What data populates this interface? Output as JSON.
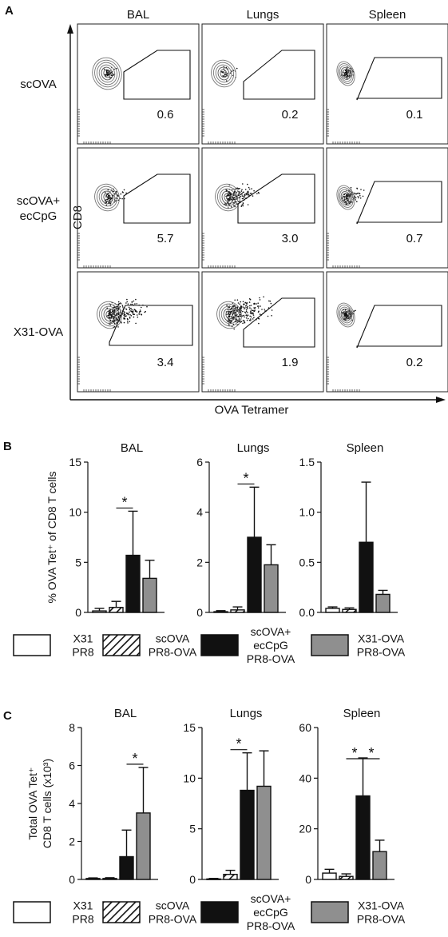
{
  "panel_letters": [
    "A",
    "B",
    "C"
  ],
  "panelA": {
    "columns": [
      "BAL",
      "Lungs",
      "Spleen"
    ],
    "rows": [
      "scOVA",
      "scOVA+\necCpG",
      "X31-OVA"
    ],
    "values": [
      [
        "0.6",
        "0.2",
        "0.1"
      ],
      [
        "5.7",
        "3.0",
        "0.7"
      ],
      [
        "3.4",
        "1.9",
        "0.2"
      ]
    ],
    "ylabel": "CD8",
    "xlabel": "OVA Tetramer"
  },
  "legend": [
    {
      "label": "X31\nPR8",
      "fill": "#ffffff",
      "hatch": false
    },
    {
      "label": "scOVA\nPR8-OVA",
      "fill": "#ffffff",
      "hatch": true
    },
    {
      "label": "scOVA+\necCpG\nPR8-OVA",
      "fill": "#111111",
      "hatch": false
    },
    {
      "label": "X31-OVA\nPR8-OVA",
      "fill": "#8f8f8f",
      "hatch": false
    }
  ],
  "chart_data": [
    {
      "type": "bar",
      "panel": "B",
      "title": "BAL",
      "ylabel": "% OVA Tet⁺ of CD8 T cells",
      "ylim": [
        0,
        15
      ],
      "yticks": [
        0,
        5,
        10,
        15
      ],
      "categories": [
        "X31/PR8",
        "scOVA/PR8-OVA",
        "scOVA+ecCpG/PR8-OVA",
        "X31-OVA/PR8-OVA"
      ],
      "values": [
        0.15,
        0.5,
        5.7,
        3.4
      ],
      "errors": [
        0.25,
        0.6,
        4.4,
        1.8
      ],
      "significance": [
        {
          "from": 1,
          "to": 2,
          "label": "*"
        }
      ]
    },
    {
      "type": "bar",
      "panel": "B",
      "title": "Lungs",
      "ylabel": "",
      "ylim": [
        0,
        6
      ],
      "yticks": [
        0,
        2,
        4,
        6
      ],
      "categories": [
        "X31/PR8",
        "scOVA/PR8-OVA",
        "scOVA+ecCpG/PR8-OVA",
        "X31-OVA/PR8-OVA"
      ],
      "values": [
        0.03,
        0.1,
        3.0,
        1.9
      ],
      "errors": [
        0.04,
        0.12,
        2.0,
        0.8
      ],
      "significance": [
        {
          "from": 1,
          "to": 2,
          "label": "*"
        }
      ]
    },
    {
      "type": "bar",
      "panel": "B",
      "title": "Spleen",
      "ylabel": "",
      "ylim": [
        0,
        1.5
      ],
      "yticks": [
        "0.0",
        "0.5",
        "1.0",
        "1.5"
      ],
      "categories": [
        "X31/PR8",
        "scOVA/PR8-OVA",
        "scOVA+ecCpG/PR8-OVA",
        "X31-OVA/PR8-OVA"
      ],
      "values": [
        0.04,
        0.03,
        0.7,
        0.18
      ],
      "errors": [
        0.015,
        0.015,
        0.6,
        0.04
      ],
      "significance": []
    },
    {
      "type": "bar",
      "panel": "C",
      "title": "BAL",
      "ylabel": "Total OVA Tet⁺ CD8 T cells (x10³)",
      "ylim": [
        0,
        8
      ],
      "yticks": [
        0,
        2,
        4,
        6,
        8
      ],
      "categories": [
        "X31/PR8",
        "scOVA/PR8-OVA",
        "scOVA+ecCpG/PR8-OVA",
        "X31-OVA/PR8-OVA"
      ],
      "values": [
        0.05,
        0.05,
        1.2,
        3.5
      ],
      "errors": [
        0.03,
        0.04,
        1.4,
        2.4
      ],
      "significance": [
        {
          "from": 2,
          "to": 3,
          "label": "*"
        }
      ]
    },
    {
      "type": "bar",
      "panel": "C",
      "title": "Lungs",
      "ylabel": "",
      "ylim": [
        0,
        15
      ],
      "yticks": [
        0,
        5,
        10,
        15
      ],
      "categories": [
        "X31/PR8",
        "scOVA/PR8-OVA",
        "scOVA+ecCpG/PR8-OVA",
        "X31-OVA/PR8-OVA"
      ],
      "values": [
        0.05,
        0.5,
        8.8,
        9.2
      ],
      "errors": [
        0.05,
        0.4,
        3.7,
        3.5
      ],
      "significance": [
        {
          "from": 1,
          "to": 2,
          "label": "*"
        }
      ]
    },
    {
      "type": "bar",
      "panel": "C",
      "title": "Spleen",
      "ylabel": "",
      "ylim": [
        0,
        60
      ],
      "yticks": [
        0,
        20,
        40,
        60
      ],
      "categories": [
        "X31/PR8",
        "scOVA/PR8-OVA",
        "scOVA+ecCpG/PR8-OVA",
        "X31-OVA/PR8-OVA"
      ],
      "values": [
        2.5,
        1.2,
        33,
        11
      ],
      "errors": [
        1.5,
        1.0,
        15,
        4.5
      ],
      "significance": [
        {
          "from": 1,
          "to": 2,
          "label": "*"
        },
        {
          "from": 2,
          "to": 3,
          "label": "*"
        }
      ]
    }
  ]
}
